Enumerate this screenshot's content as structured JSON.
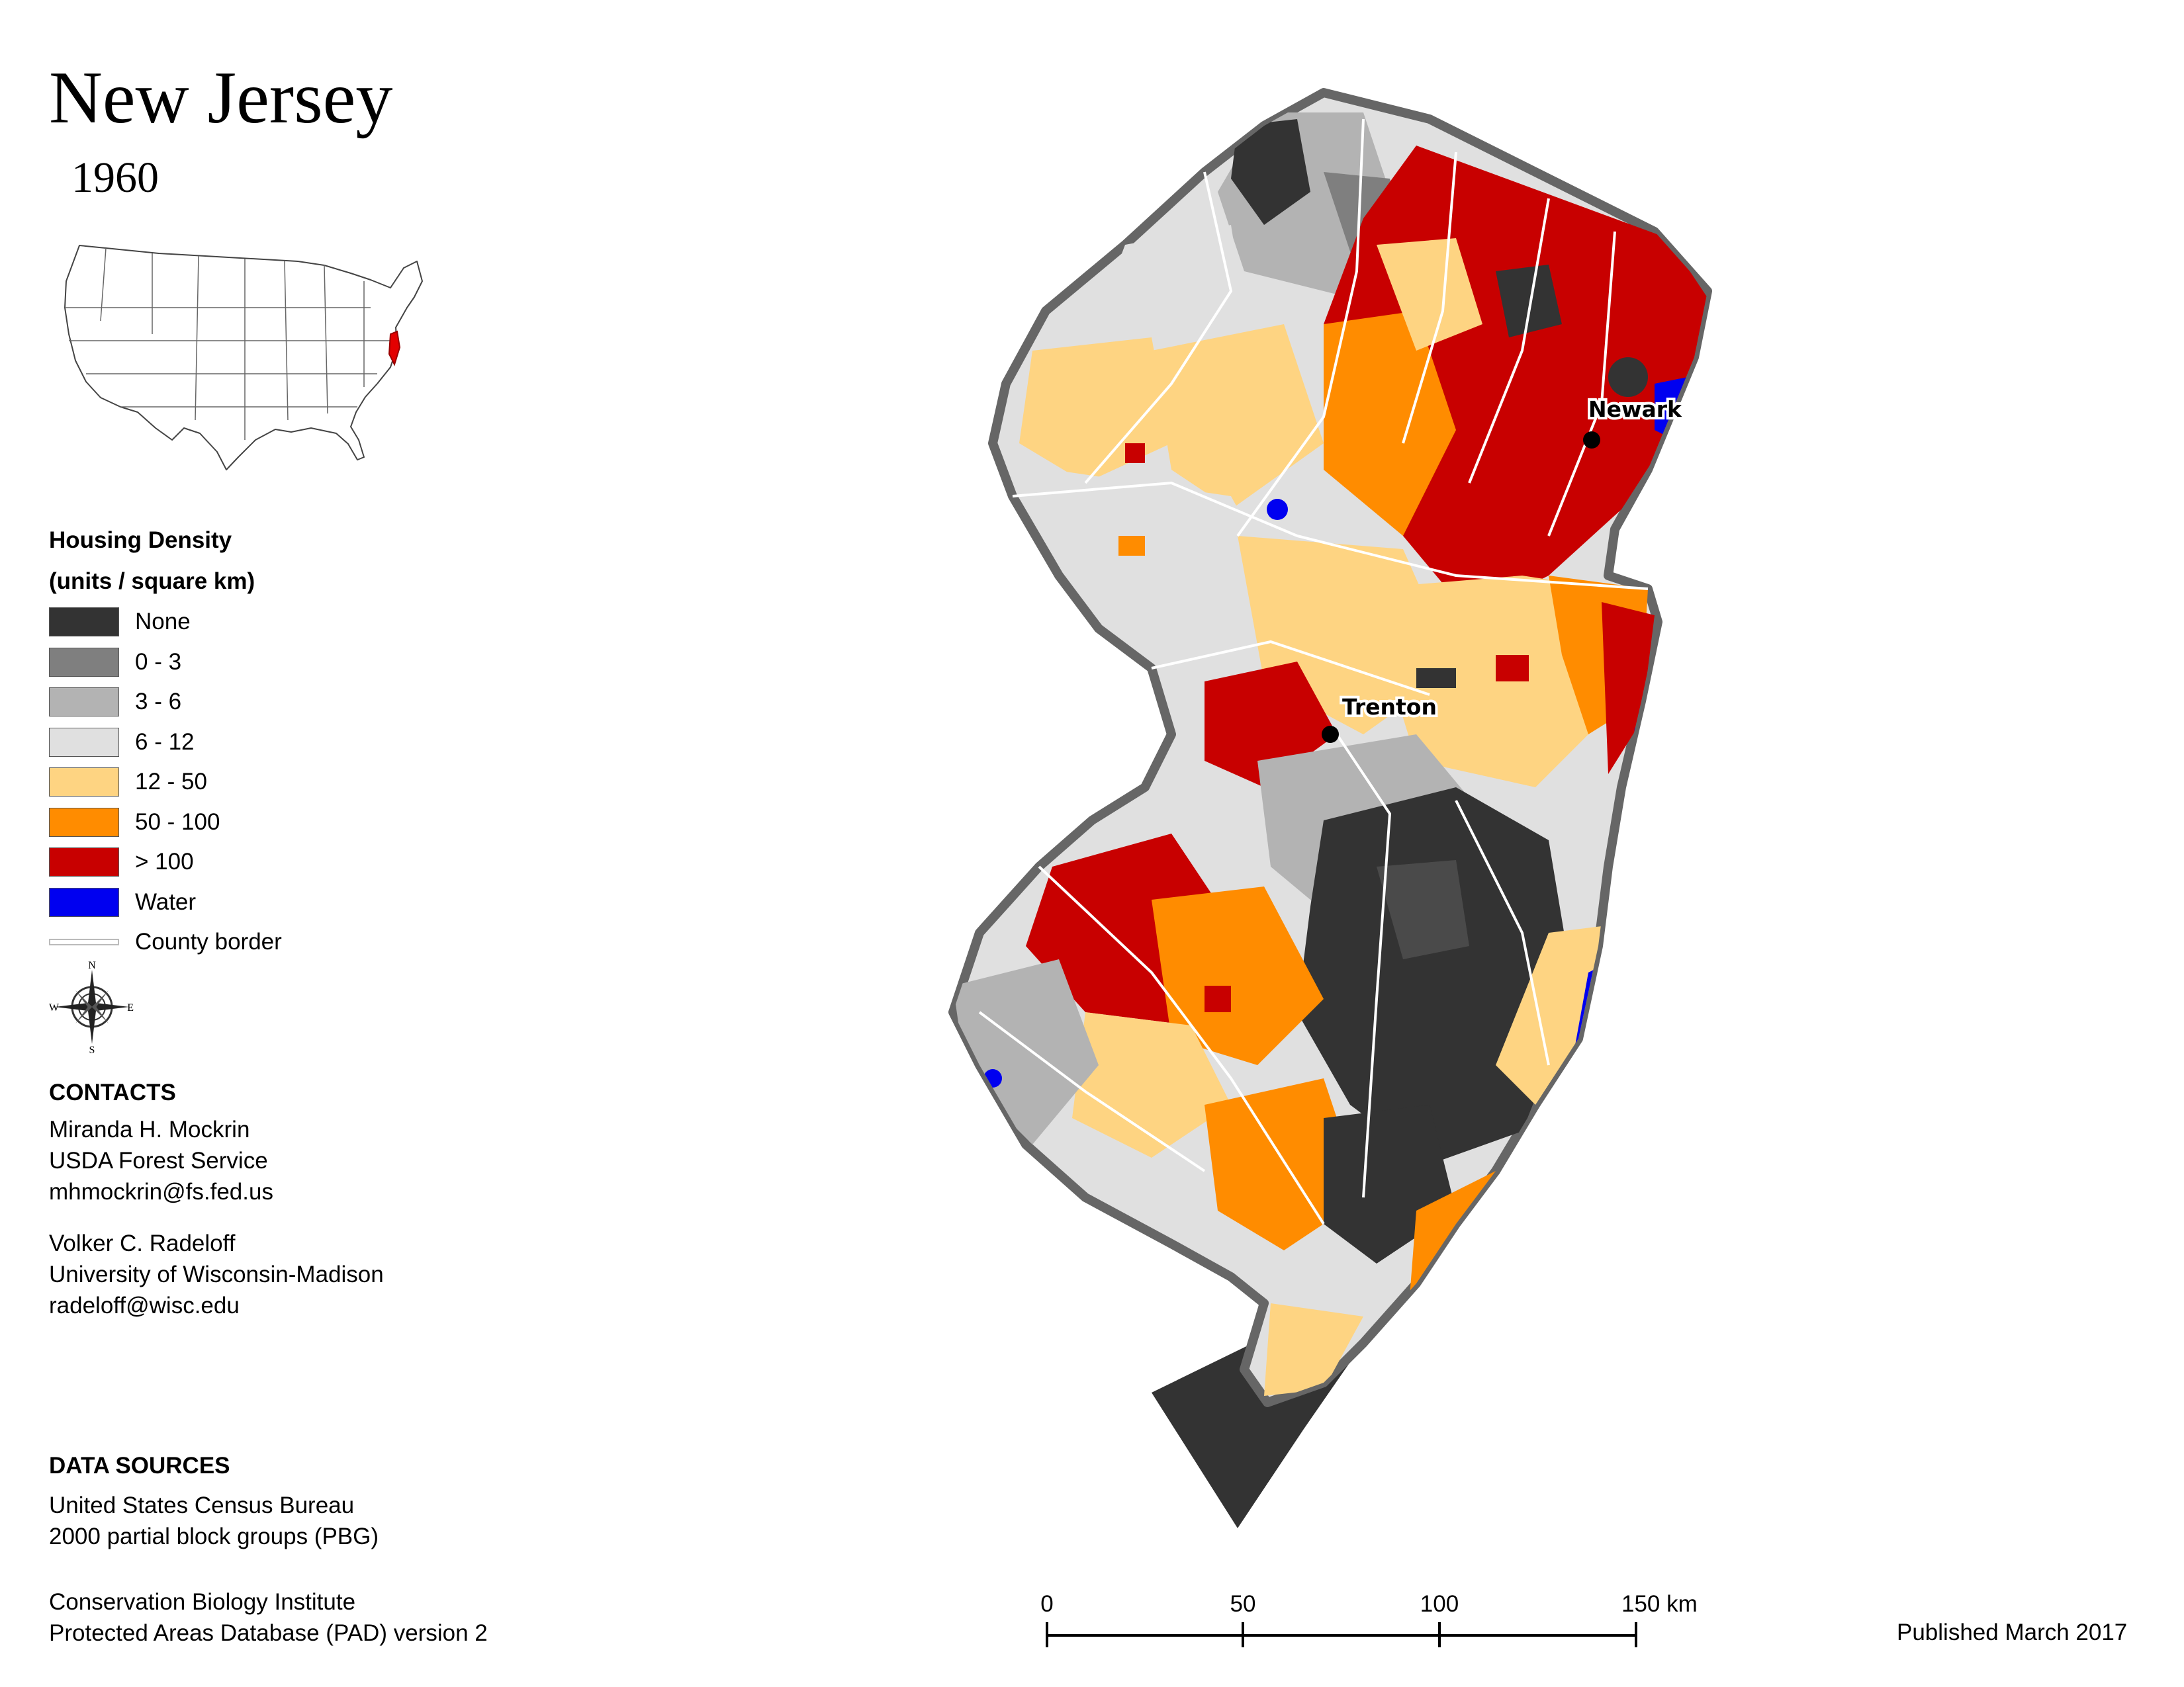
{
  "title": "New Jersey",
  "year": "1960",
  "inset_map": {
    "name": "United States locator map",
    "highlight_color": "#e30000"
  },
  "legend": {
    "title_line1": "Housing Density",
    "title_line2": "(units / square km)",
    "items": [
      {
        "label": "None",
        "color": "#333333"
      },
      {
        "label": "0 - 3",
        "color": "#7f7f7f"
      },
      {
        "label": "3 - 6",
        "color": "#b3b3b3"
      },
      {
        "label": "6 - 12",
        "color": "#e0e0e0"
      },
      {
        "label": "12 - 50",
        "color": "#fed482"
      },
      {
        "label": "50 - 100",
        "color": "#ff8c00"
      },
      {
        "label": "> 100",
        "color": "#c80000"
      },
      {
        "label": "Water",
        "color": "#0000f0"
      },
      {
        "label": "County border",
        "color": "#bbbbbb"
      }
    ]
  },
  "compass": {
    "n": "N",
    "s": "S",
    "e": "E",
    "w": "W"
  },
  "contacts": {
    "heading": "CONTACTS",
    "person1": {
      "name": "Miranda H. Mockrin",
      "org": "USDA Forest Service",
      "email": "mhmockrin@fs.fed.us"
    },
    "person2": {
      "name": "Volker C. Radeloff",
      "org": "University of Wisconsin-Madison",
      "email": "radeloff@wisc.edu"
    }
  },
  "data_sources": {
    "heading": "DATA SOURCES",
    "source1_line1": "United States Census Bureau",
    "source1_line2": "2000 partial block groups (PBG)",
    "source2_line1": "Conservation Biology Institute",
    "source2_line2": "Protected Areas Database (PAD) version 2"
  },
  "cities": {
    "newark": "Newark",
    "trenton": "Trenton"
  },
  "scale_bar": {
    "t0": "0",
    "t1": "50",
    "t2": "100",
    "t3": "150 km"
  },
  "published": "Published March 2017"
}
